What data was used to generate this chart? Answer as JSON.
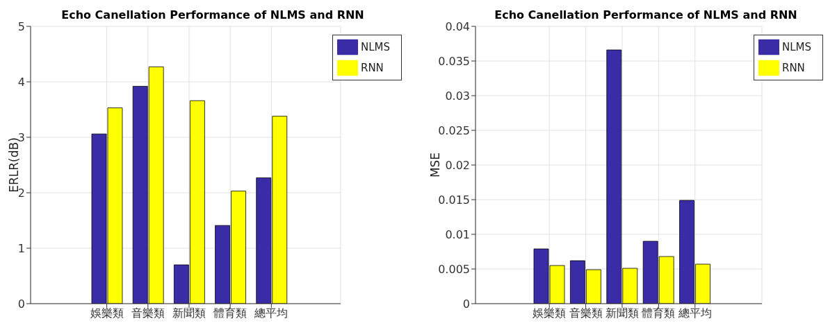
{
  "chart_data": [
    {
      "type": "bar",
      "title": "Echo Canellation Performance of NLMS and RNN",
      "ylabel": "ERLR(dB)",
      "categories": [
        "娛樂類",
        "音樂類",
        "新聞類",
        "體育類",
        "總平均"
      ],
      "series": [
        {
          "name": "NLMS",
          "color": "#3a2ca6",
          "values": [
            3.06,
            3.92,
            0.7,
            1.41,
            2.27
          ]
        },
        {
          "name": "RNN",
          "color": "#ffff00",
          "values": [
            3.53,
            4.27,
            3.66,
            2.03,
            3.38
          ]
        }
      ],
      "ylim": [
        0,
        5
      ],
      "yticks": [
        0,
        1,
        2,
        3,
        4,
        5
      ],
      "grid": true,
      "legend": "top right"
    },
    {
      "type": "bar",
      "title": "Echo Canellation Performance of NLMS and RNN",
      "ylabel": "MSE",
      "categories": [
        "娛樂類",
        "音樂類",
        "新聞類",
        "體育類",
        "總平均"
      ],
      "series": [
        {
          "name": "NLMS",
          "color": "#3a2ca6",
          "values": [
            0.0079,
            0.0062,
            0.0366,
            0.009,
            0.0149
          ]
        },
        {
          "name": "RNN",
          "color": "#ffff00",
          "values": [
            0.0055,
            0.0049,
            0.0051,
            0.0068,
            0.0057
          ]
        }
      ],
      "ylim": [
        0,
        0.04
      ],
      "yticks": [
        0,
        0.005,
        0.01,
        0.015,
        0.02,
        0.025,
        0.03,
        0.035,
        0.04
      ],
      "grid": true,
      "legend": "top right"
    }
  ]
}
